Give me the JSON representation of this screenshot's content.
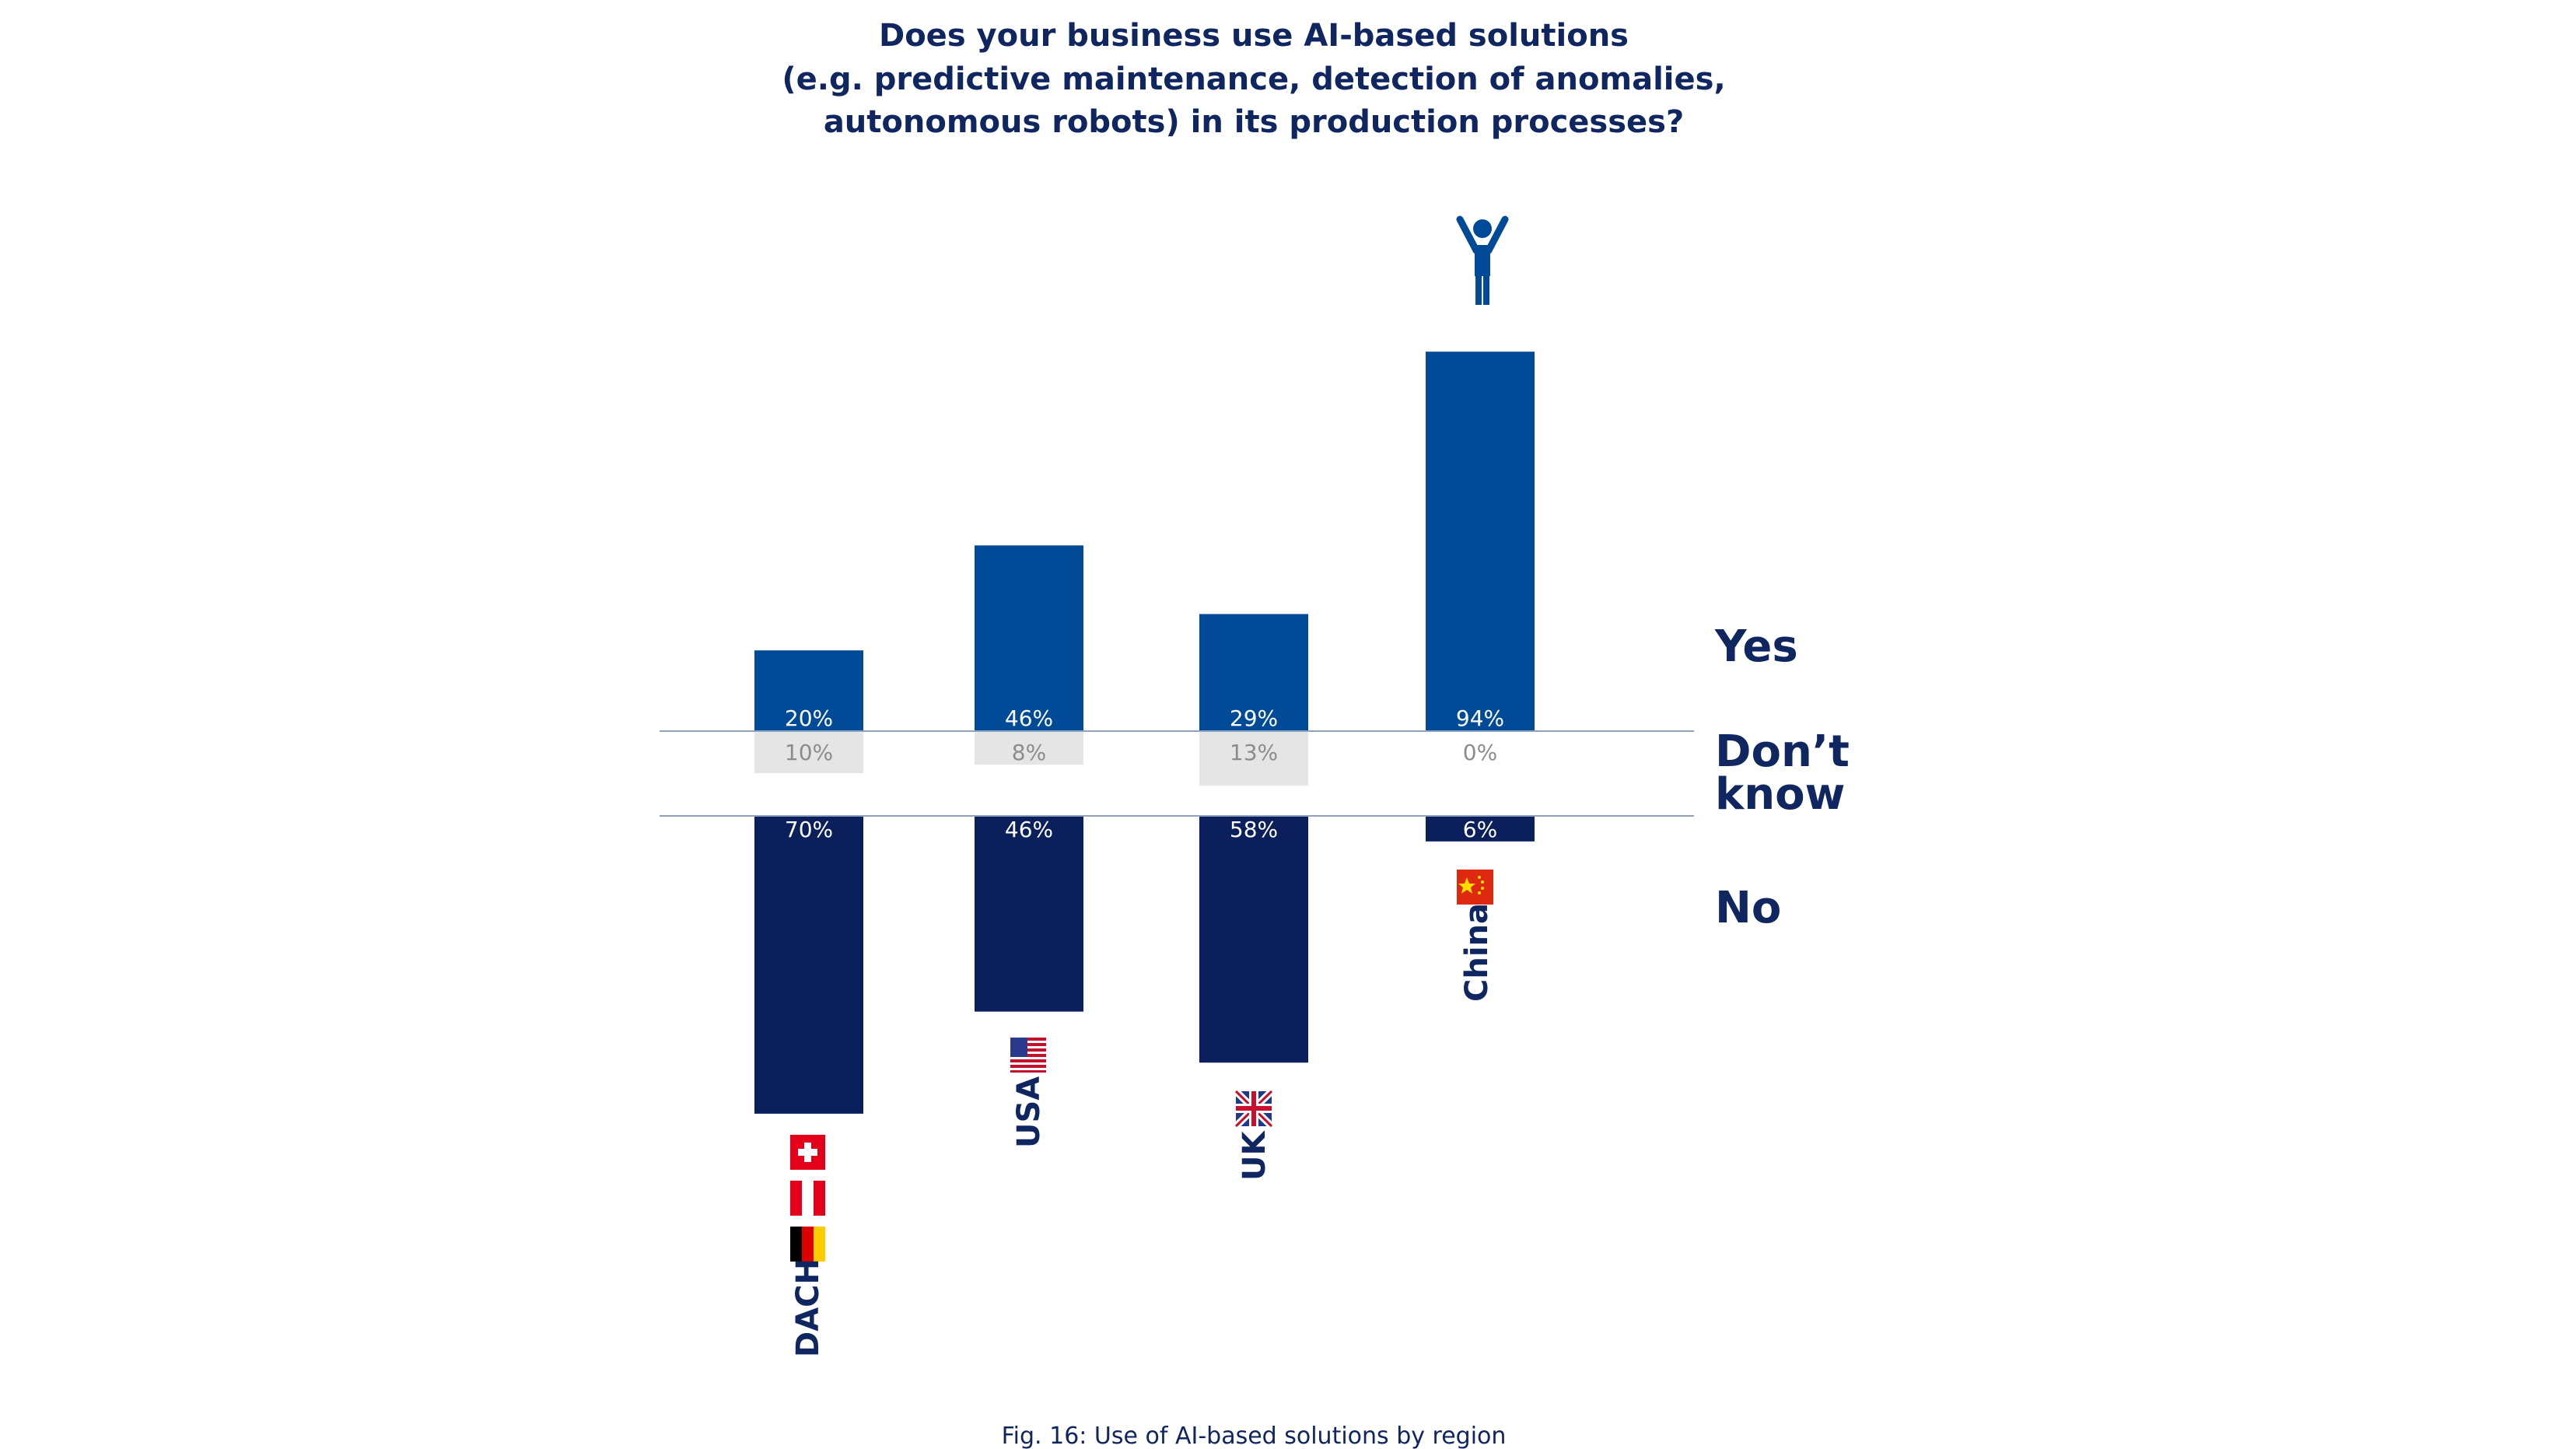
{
  "chart_data": {
    "type": "bar",
    "title_lines": [
      "Does your business use AI-based solutions",
      "(e.g. predictive maintenance, detection of anomalies,",
      "autonomous robots) in its production processes?"
    ],
    "caption": "Fig. 16: Use of AI-based solutions by region",
    "categories": [
      "DACH",
      "USA",
      "UK",
      "China"
    ],
    "flags": [
      [
        "switzerland-flag",
        "austria-flag",
        "germany-flag"
      ],
      [
        "usa-flag"
      ],
      [
        "uk-flag"
      ],
      [
        "china-flag"
      ]
    ],
    "series": [
      {
        "name": "Yes",
        "values": [
          20,
          46,
          29,
          94
        ],
        "labels": [
          "20%",
          "46%",
          "29%",
          "94%"
        ],
        "color": "#004a97",
        "label_color": "#ffffff"
      },
      {
        "name": "Don’t know",
        "values": [
          10,
          8,
          13,
          0
        ],
        "labels": [
          "10%",
          "8%",
          "13%",
          "0%"
        ],
        "color": "#e5e5e5",
        "label_color": "#8c8c8c"
      },
      {
        "name": "No",
        "values": [
          70,
          46,
          58,
          6
        ],
        "labels": [
          "70%",
          "46%",
          "58%",
          "6%"
        ],
        "color": "#0a1f5c",
        "label_color": "#ffffff"
      }
    ],
    "side_labels": {
      "yes": "Yes",
      "dont_know_line1": "Don’t",
      "dont_know_line2": "know",
      "no": "No"
    },
    "highlight": {
      "category": "China",
      "icon": "person-arms-up-icon"
    },
    "colors": {
      "title": "#0f2660",
      "axis_line": "#8ea2c0"
    }
  }
}
